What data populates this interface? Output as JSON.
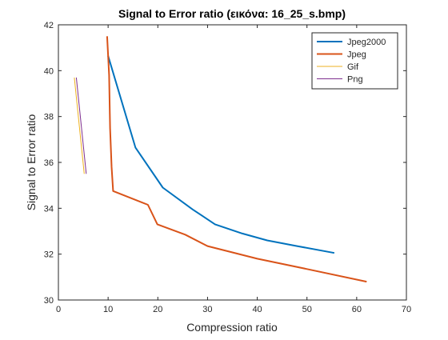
{
  "chart_data": {
    "type": "line",
    "title": "Signal to Error ratio (εικόνα: 16_25_s.bmp)",
    "xlabel": "Compression ratio",
    "ylabel": "Signal to Error ratio",
    "xlim": [
      0,
      70
    ],
    "ylim": [
      30,
      42
    ],
    "xticks": [
      0,
      10,
      20,
      30,
      40,
      50,
      60,
      70
    ],
    "yticks": [
      30,
      32,
      34,
      36,
      38,
      40,
      42
    ],
    "grid": false,
    "legend_position": "top-right",
    "series": [
      {
        "name": "Jpeg2000",
        "color": "#0072BD",
        "line_width": "thick",
        "points": [
          [
            10.0,
            40.65
          ],
          [
            15.5,
            36.65
          ],
          [
            21.0,
            34.9
          ],
          [
            27.0,
            33.95
          ],
          [
            31.5,
            33.3
          ],
          [
            37.0,
            32.9
          ],
          [
            42.0,
            32.6
          ],
          [
            48.0,
            32.35
          ],
          [
            55.5,
            32.05
          ]
        ]
      },
      {
        "name": "Jpeg",
        "color": "#D95319",
        "line_width": "thick",
        "points": [
          [
            9.8,
            41.5
          ],
          [
            10.2,
            39.8
          ],
          [
            10.4,
            37.5
          ],
          [
            10.7,
            35.8
          ],
          [
            11.0,
            34.75
          ],
          [
            18.0,
            34.15
          ],
          [
            19.9,
            33.3
          ],
          [
            25.5,
            32.85
          ],
          [
            30.0,
            32.35
          ],
          [
            40.0,
            31.8
          ],
          [
            50.0,
            31.35
          ],
          [
            62.0,
            30.8
          ]
        ]
      },
      {
        "name": "Gif",
        "color": "#EDB120",
        "line_width": "thin",
        "points": [
          [
            3.2,
            39.7
          ],
          [
            5.2,
            35.5
          ]
        ]
      },
      {
        "name": "Png",
        "color": "#7E2F8E",
        "line_width": "thin",
        "points": [
          [
            3.6,
            39.7
          ],
          [
            5.6,
            35.5
          ]
        ]
      }
    ]
  }
}
